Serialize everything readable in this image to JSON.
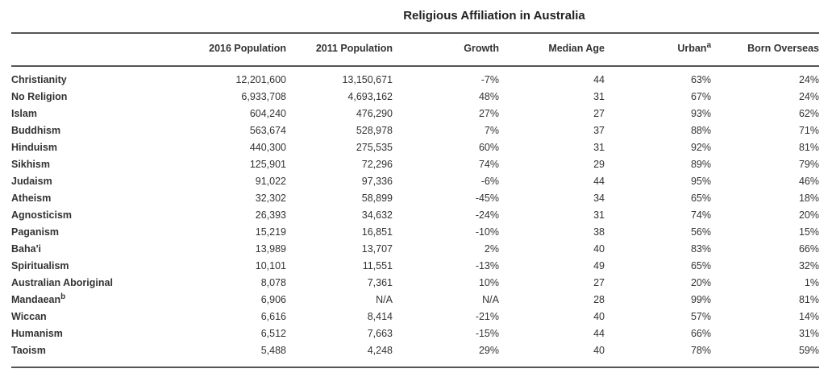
{
  "chart_data": {
    "type": "table",
    "title": "Religious Affiliation in Australia",
    "columns": [
      "",
      "2016 Population",
      "2011 Population",
      "Growth",
      "Median Age",
      "Urban",
      "Born Overseas"
    ],
    "column_footnotes": {
      "Urban": "a"
    },
    "rows": [
      {
        "name": "Christianity",
        "footnote": "",
        "values": [
          "12,201,600",
          "13,150,671",
          "-7%",
          "44",
          "63%",
          "24%"
        ]
      },
      {
        "name": "No Religion",
        "footnote": "",
        "values": [
          "6,933,708",
          "4,693,162",
          "48%",
          "31",
          "67%",
          "24%"
        ]
      },
      {
        "name": "Islam",
        "footnote": "",
        "values": [
          "604,240",
          "476,290",
          "27%",
          "27",
          "93%",
          "62%"
        ]
      },
      {
        "name": "Buddhism",
        "footnote": "",
        "values": [
          "563,674",
          "528,978",
          "7%",
          "37",
          "88%",
          "71%"
        ]
      },
      {
        "name": "Hinduism",
        "footnote": "",
        "values": [
          "440,300",
          "275,535",
          "60%",
          "31",
          "92%",
          "81%"
        ]
      },
      {
        "name": "Sikhism",
        "footnote": "",
        "values": [
          "125,901",
          "72,296",
          "74%",
          "29",
          "89%",
          "79%"
        ]
      },
      {
        "name": "Judaism",
        "footnote": "",
        "values": [
          "91,022",
          "97,336",
          "-6%",
          "44",
          "95%",
          "46%"
        ]
      },
      {
        "name": "Atheism",
        "footnote": "",
        "values": [
          "32,302",
          "58,899",
          "-45%",
          "34",
          "65%",
          "18%"
        ]
      },
      {
        "name": "Agnosticism",
        "footnote": "",
        "values": [
          "26,393",
          "34,632",
          "-24%",
          "31",
          "74%",
          "20%"
        ]
      },
      {
        "name": "Paganism",
        "footnote": "",
        "values": [
          "15,219",
          "16,851",
          "-10%",
          "38",
          "56%",
          "15%"
        ]
      },
      {
        "name": "Baha'i",
        "footnote": "",
        "values": [
          "13,989",
          "13,707",
          "2%",
          "40",
          "83%",
          "66%"
        ]
      },
      {
        "name": "Spiritualism",
        "footnote": "",
        "values": [
          "10,101",
          "11,551",
          "-13%",
          "49",
          "65%",
          "32%"
        ]
      },
      {
        "name": "Australian Aboriginal",
        "footnote": "",
        "values": [
          "8,078",
          "7,361",
          "10%",
          "27",
          "20%",
          "1%"
        ]
      },
      {
        "name": "Mandaean",
        "footnote": "b",
        "values": [
          "6,906",
          "N/A",
          "N/A",
          "28",
          "99%",
          "81%"
        ]
      },
      {
        "name": "Wiccan",
        "footnote": "",
        "values": [
          "6,616",
          "8,414",
          "-21%",
          "40",
          "57%",
          "14%"
        ]
      },
      {
        "name": "Humanism",
        "footnote": "",
        "values": [
          "6,512",
          "7,663",
          "-15%",
          "44",
          "66%",
          "31%"
        ]
      },
      {
        "name": "Taoism",
        "footnote": "",
        "values": [
          "5,488",
          "4,248",
          "29%",
          "40",
          "78%",
          "59%"
        ]
      }
    ]
  }
}
